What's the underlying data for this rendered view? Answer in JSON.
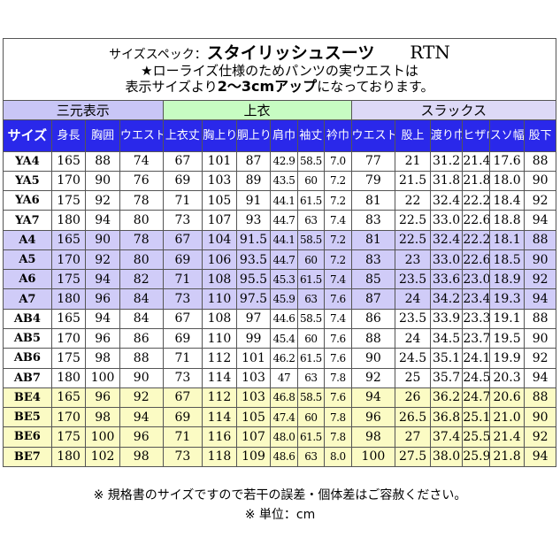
{
  "title": {
    "label": "サイズスペック：",
    "main": "スタイリッシュスーツ",
    "code": "RTN",
    "note_line1": "★ローライズ仕様のためパンツの実ウエストは",
    "note_line2_pre": "表示サイズより",
    "note_line2_bold": "2〜3cmアップ",
    "note_line2_post": "になっております。"
  },
  "groups": {
    "sanmoto": "三元表示",
    "jacket": "上衣",
    "slacks": "スラックス"
  },
  "headers": [
    "サイズ",
    "身長",
    "胸囲",
    "ウエスト",
    "上衣丈",
    "胸上り",
    "胴上り",
    "肩巾",
    "袖丈",
    "衿巾",
    "ウエスト上り",
    "股上",
    "渡り巾",
    "ヒザ巾",
    "スソ幅",
    "股下"
  ],
  "rows": [
    [
      "YA4",
      "165",
      "88",
      "74",
      "67",
      "101",
      "87",
      "42.9",
      "58.5",
      "7.0",
      "77",
      "21",
      "31.2",
      "21.4",
      "17.6",
      "88"
    ],
    [
      "YA5",
      "170",
      "90",
      "76",
      "69",
      "103",
      "89",
      "43.5",
      "60",
      "7.2",
      "79",
      "21.5",
      "31.8",
      "21.8",
      "18.0",
      "90"
    ],
    [
      "YA6",
      "175",
      "92",
      "78",
      "71",
      "105",
      "91",
      "44.1",
      "61.5",
      "7.2",
      "81",
      "22",
      "32.4",
      "22.2",
      "18.4",
      "92"
    ],
    [
      "YA7",
      "180",
      "94",
      "80",
      "73",
      "107",
      "93",
      "44.7",
      "63",
      "7.4",
      "83",
      "22.5",
      "33.0",
      "22.6",
      "18.8",
      "94"
    ],
    [
      "A4",
      "165",
      "90",
      "78",
      "67",
      "104",
      "91.5",
      "44.1",
      "58.5",
      "7.2",
      "81",
      "22.5",
      "32.4",
      "22.2",
      "18.1",
      "88"
    ],
    [
      "A5",
      "170",
      "92",
      "80",
      "69",
      "106",
      "93.5",
      "44.7",
      "60",
      "7.2",
      "83",
      "23",
      "33.0",
      "22.6",
      "18.5",
      "90"
    ],
    [
      "A6",
      "175",
      "94",
      "82",
      "71",
      "108",
      "95.5",
      "45.3",
      "61.5",
      "7.4",
      "85",
      "23.5",
      "33.6",
      "23.0",
      "18.9",
      "92"
    ],
    [
      "A7",
      "180",
      "96",
      "84",
      "73",
      "110",
      "97.5",
      "45.9",
      "63",
      "7.6",
      "87",
      "24",
      "34.2",
      "23.4",
      "19.3",
      "94"
    ],
    [
      "AB4",
      "165",
      "94",
      "84",
      "67",
      "108",
      "97",
      "44.6",
      "58.5",
      "7.4",
      "86",
      "23.5",
      "33.9",
      "23.3",
      "19.1",
      "88"
    ],
    [
      "AB5",
      "170",
      "96",
      "86",
      "69",
      "110",
      "99",
      "45.4",
      "60",
      "7.6",
      "88",
      "24",
      "34.5",
      "23.7",
      "19.5",
      "90"
    ],
    [
      "AB6",
      "175",
      "98",
      "88",
      "71",
      "112",
      "101",
      "46.2",
      "61.5",
      "7.6",
      "90",
      "24.5",
      "35.1",
      "24.1",
      "19.9",
      "92"
    ],
    [
      "AB7",
      "180",
      "100",
      "90",
      "73",
      "114",
      "103",
      "47",
      "63",
      "7.8",
      "92",
      "25",
      "35.7",
      "24.5",
      "20.3",
      "94"
    ],
    [
      "BE4",
      "165",
      "96",
      "92",
      "67",
      "112",
      "103",
      "46.8",
      "58.5",
      "7.6",
      "94",
      "26",
      "36.2",
      "24.7",
      "20.6",
      "88"
    ],
    [
      "BE5",
      "170",
      "98",
      "94",
      "69",
      "114",
      "105",
      "47.4",
      "60",
      "7.8",
      "96",
      "26.5",
      "36.8",
      "25.1",
      "21.0",
      "90"
    ],
    [
      "BE6",
      "175",
      "100",
      "96",
      "71",
      "116",
      "107",
      "48.0",
      "61.5",
      "7.8",
      "98",
      "27",
      "37.4",
      "25.5",
      "21.4",
      "92"
    ],
    [
      "BE7",
      "180",
      "102",
      "98",
      "73",
      "118",
      "109",
      "48.6",
      "63",
      "8.0",
      "100",
      "27.5",
      "38.0",
      "25.9",
      "21.8",
      "94"
    ]
  ],
  "footer": {
    "line1": "※ 規格書のサイズですので若干の誤差・個体差はご容赦ください。",
    "line2": "※ 単位：cm"
  }
}
